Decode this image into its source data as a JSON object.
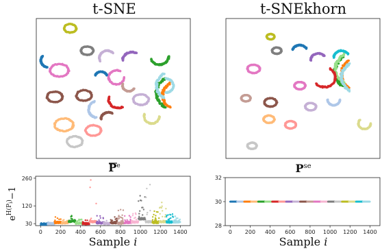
{
  "colors": [
    "#1f77b4",
    "#aec7e8",
    "#ff7f0e",
    "#ffbb78",
    "#2ca02c",
    "#98df8a",
    "#d62728",
    "#ff9896",
    "#9467bd",
    "#c5b0d5",
    "#8c564b",
    "#c49c94",
    "#e377c2",
    "#f7b6d2",
    "#7f7f7f",
    "#c7c7c7",
    "#bcbd22",
    "#dbdb8d",
    "#17becf",
    "#9edae5"
  ],
  "chart_data": [
    {
      "type": "scatter",
      "title": "t-SNE",
      "xlabel": "",
      "ylabel": "",
      "axes_ticks": false,
      "clusters": [
        {
          "shape": "loop",
          "cx": 0.15,
          "cy": 0.37,
          "r": 0.06,
          "color": "#e377c2"
        },
        {
          "shape": "loop",
          "cx": 0.12,
          "cy": 0.56,
          "r": 0.05,
          "color": "#8c564b"
        },
        {
          "shape": "loop",
          "cx": 0.18,
          "cy": 0.76,
          "r": 0.06,
          "color": "#ffbb78"
        },
        {
          "shape": "loop",
          "cx": 0.31,
          "cy": 0.55,
          "r": 0.05,
          "color": "#8c564b"
        },
        {
          "shape": "loop",
          "cx": 0.25,
          "cy": 0.88,
          "r": 0.05,
          "color": "#c7c7c7"
        },
        {
          "shape": "loop",
          "cx": 0.33,
          "cy": 0.23,
          "r": 0.04,
          "color": "#7f7f7f"
        },
        {
          "shape": "loop",
          "cx": 0.22,
          "cy": 0.07,
          "r": 0.04,
          "color": "#bcbd22"
        },
        {
          "shape": "loop",
          "cx": 0.68,
          "cy": 0.58,
          "r": 0.05,
          "color": "#c5b0d5"
        },
        {
          "shape": "loop",
          "cx": 0.37,
          "cy": 0.8,
          "r": 0.05,
          "color": "#ff9896"
        },
        {
          "shape": "arc",
          "cx": 0.9,
          "cy": 0.53,
          "r": 0.12,
          "a0": 120,
          "a1": 240,
          "color": "#2ca02c"
        },
        {
          "shape": "arc",
          "cx": 0.92,
          "cy": 0.55,
          "r": 0.1,
          "a0": 120,
          "a1": 240,
          "color": "#ff7f0e"
        },
        {
          "shape": "arc",
          "cx": 0.88,
          "cy": 0.48,
          "r": 0.1,
          "a0": 120,
          "a1": 240,
          "color": "#9edae5"
        },
        {
          "shape": "arc",
          "cx": 0.52,
          "cy": 0.42,
          "r": 0.05,
          "a0": 0,
          "a1": 300,
          "color": "#e377c2"
        },
        {
          "shape": "arc",
          "cx": 0.62,
          "cy": 0.3,
          "r": 0.06,
          "a0": 180,
          "a1": 300,
          "color": "#9467bd"
        },
        {
          "shape": "arc",
          "cx": 0.53,
          "cy": 0.58,
          "r": 0.06,
          "a0": 60,
          "a1": 200,
          "color": "#d62728"
        },
        {
          "shape": "arc",
          "cx": 0.8,
          "cy": 0.27,
          "r": 0.06,
          "a0": 0,
          "a1": 160,
          "color": "#2ca02c"
        },
        {
          "shape": "arc",
          "cx": 0.84,
          "cy": 0.48,
          "r": 0.05,
          "a0": 270,
          "a1": 450,
          "color": "#9edae5"
        },
        {
          "shape": "arc",
          "cx": 0.4,
          "cy": 0.65,
          "r": 0.06,
          "a0": 100,
          "a1": 250,
          "color": "#aec7e8"
        },
        {
          "shape": "arc",
          "cx": 0.75,
          "cy": 0.7,
          "r": 0.05,
          "a0": 0,
          "a1": 200,
          "color": "#dbdb8d"
        },
        {
          "shape": "arc",
          "cx": 0.08,
          "cy": 0.3,
          "r": 0.05,
          "a0": 100,
          "a1": 220,
          "color": "#1f77b4"
        },
        {
          "shape": "arc",
          "cx": 0.46,
          "cy": 0.28,
          "r": 0.05,
          "a0": 150,
          "a1": 320,
          "color": "#c5b0d5"
        },
        {
          "shape": "arc",
          "cx": 0.6,
          "cy": 0.48,
          "r": 0.04,
          "a0": 30,
          "a1": 200,
          "color": "#c49c94"
        },
        {
          "shape": "arc",
          "cx": 0.42,
          "cy": 0.42,
          "r": 0.04,
          "a0": 200,
          "a1": 340,
          "color": "#1f77b4"
        },
        {
          "shape": "arc",
          "cx": 0.47,
          "cy": 0.72,
          "r": 0.05,
          "a0": 180,
          "a1": 300,
          "color": "#8c564b"
        }
      ]
    },
    {
      "type": "scatter",
      "title": "t-SNEkhorn",
      "xlabel": "",
      "ylabel": "",
      "axes_ticks": false,
      "clusters": [
        {
          "shape": "loop",
          "cx": 0.18,
          "cy": 0.36,
          "r": 0.04,
          "color": "#e377c2"
        },
        {
          "shape": "loop",
          "cx": 0.29,
          "cy": 0.6,
          "r": 0.04,
          "color": "#8c564b"
        },
        {
          "shape": "loop",
          "cx": 0.13,
          "cy": 0.57,
          "r": 0.03,
          "color": "#c49c94"
        },
        {
          "shape": "loop",
          "cx": 0.29,
          "cy": 0.13,
          "r": 0.025,
          "color": "#bcbd22"
        },
        {
          "shape": "loop",
          "cx": 0.33,
          "cy": 0.23,
          "r": 0.03,
          "color": "#7f7f7f"
        },
        {
          "shape": "loop",
          "cx": 0.48,
          "cy": 0.48,
          "r": 0.035,
          "color": "#e377c2"
        },
        {
          "shape": "loop",
          "cx": 0.42,
          "cy": 0.76,
          "r": 0.035,
          "color": "#ff9896"
        },
        {
          "shape": "loop",
          "cx": 0.55,
          "cy": 0.63,
          "r": 0.035,
          "color": "#c5b0d5"
        },
        {
          "shape": "loop",
          "cx": 0.28,
          "cy": 0.72,
          "r": 0.035,
          "color": "#ffbb78"
        },
        {
          "shape": "loop",
          "cx": 0.17,
          "cy": 0.91,
          "r": 0.03,
          "color": "#c7c7c7"
        },
        {
          "shape": "arc",
          "cx": 0.85,
          "cy": 0.38,
          "r": 0.14,
          "a0": 130,
          "a1": 230,
          "color": "#2ca02c"
        },
        {
          "shape": "arc",
          "cx": 0.88,
          "cy": 0.4,
          "r": 0.13,
          "a0": 130,
          "a1": 230,
          "color": "#ff7f0e"
        },
        {
          "shape": "arc",
          "cx": 0.83,
          "cy": 0.36,
          "r": 0.12,
          "a0": 120,
          "a1": 240,
          "color": "#98df8a"
        },
        {
          "shape": "arc",
          "cx": 0.86,
          "cy": 0.42,
          "r": 0.11,
          "a0": 120,
          "a1": 240,
          "color": "#9edae5"
        },
        {
          "shape": "arc",
          "cx": 0.64,
          "cy": 0.42,
          "r": 0.07,
          "a0": -60,
          "a1": 140,
          "color": "#d62728"
        },
        {
          "shape": "arc",
          "cx": 0.6,
          "cy": 0.3,
          "r": 0.05,
          "a0": 180,
          "a1": 320,
          "color": "#9467bd"
        },
        {
          "shape": "arc",
          "cx": 0.48,
          "cy": 0.24,
          "r": 0.05,
          "a0": 200,
          "a1": 330,
          "color": "#1f77b4"
        },
        {
          "shape": "arc",
          "cx": 0.9,
          "cy": 0.75,
          "r": 0.04,
          "a0": 0,
          "a1": 220,
          "color": "#dbdb8d"
        },
        {
          "shape": "arc",
          "cx": 0.75,
          "cy": 0.28,
          "r": 0.05,
          "a0": 180,
          "a1": 330,
          "color": "#17becf"
        },
        {
          "shape": "arc",
          "cx": 0.7,
          "cy": 0.58,
          "r": 0.04,
          "a0": 0,
          "a1": 180,
          "color": "#aec7e8"
        }
      ]
    },
    {
      "type": "scatter",
      "title": "P̅ᵉ",
      "xlabel": "Sample i",
      "ylabel": "e^H(P_i) − 1",
      "xlim": [
        -50,
        1500
      ],
      "ylim": [
        20,
        270
      ],
      "yticks": [
        30,
        120,
        260
      ],
      "xticks": [
        0,
        200,
        400,
        600,
        800,
        1000,
        1200,
        1400
      ],
      "n_per_class": 70,
      "class_medians": [
        28,
        30,
        36,
        34,
        42,
        32,
        30,
        40,
        34,
        30,
        35,
        32,
        36,
        38,
        55,
        40,
        36,
        40,
        38,
        38
      ],
      "class_max": [
        33,
        38,
        65,
        55,
        72,
        52,
        48,
        260,
        75,
        45,
        65,
        105,
        70,
        90,
        210,
        235,
        110,
        160,
        80,
        70
      ]
    },
    {
      "type": "scatter",
      "title": "Pˢᵉ",
      "xlabel": "Sample i",
      "ylabel": "",
      "xlim": [
        -50,
        1500
      ],
      "ylim": [
        28,
        32
      ],
      "yticks": [
        28,
        30,
        32
      ],
      "xticks": [
        0,
        200,
        400,
        600,
        800,
        1000,
        1200,
        1400
      ],
      "constant_value": 30,
      "n_per_class": 70
    }
  ]
}
